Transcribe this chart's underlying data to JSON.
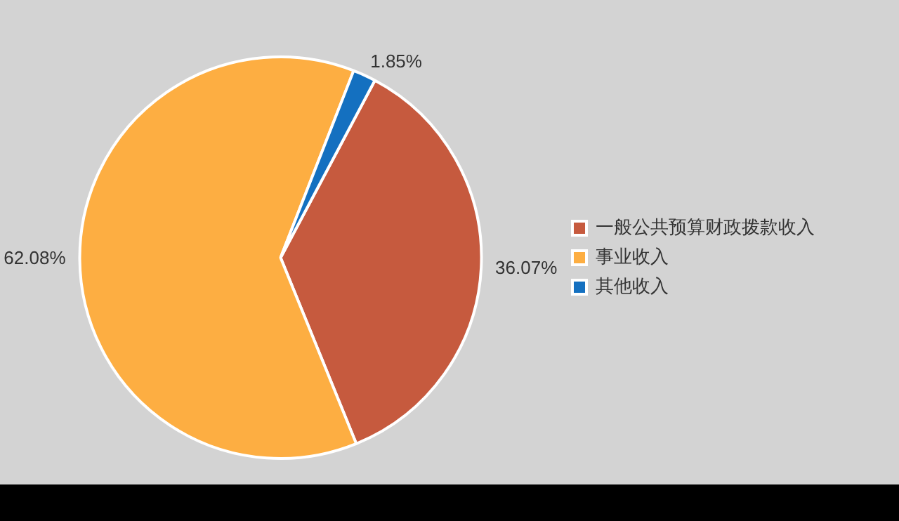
{
  "chart_data": {
    "type": "pie",
    "categories": [
      "一般公共预算财政拨款收入",
      "事业收入",
      "其他收入"
    ],
    "values": [
      36.07,
      62.08,
      1.85
    ],
    "colors": [
      "#c65a3e",
      "#fdae42",
      "#1470c0"
    ],
    "value_labels": [
      "36.07%",
      "62.08%",
      "1.85%"
    ],
    "legend": "right"
  }
}
